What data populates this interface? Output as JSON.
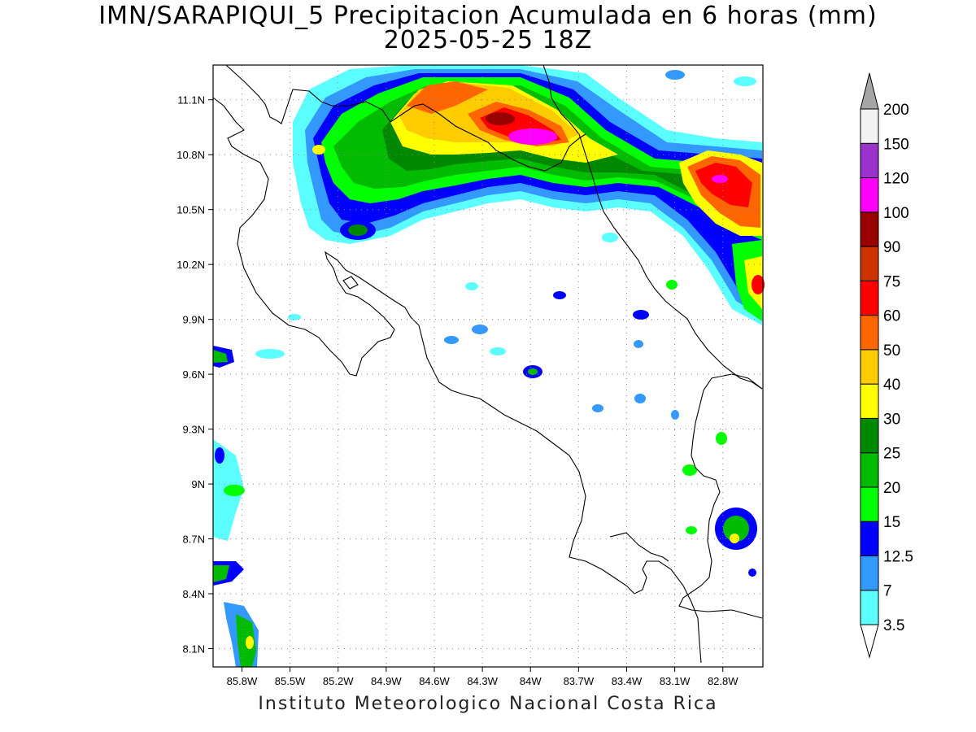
{
  "title": {
    "line1": "IMN/SARAPIQUI_5 Precipitacion Acumulada en 6 horas (mm)",
    "line2": "2025-05-25 18Z"
  },
  "footer": "Instituto Meteorologico Nacional Costa Rica",
  "map": {
    "lon_range": [
      -85.98,
      -82.55
    ],
    "lat_range": [
      8.0,
      11.29
    ],
    "lon_ticks": [
      {
        "value": -85.8,
        "label": "85.8W"
      },
      {
        "value": -85.5,
        "label": "85.5W"
      },
      {
        "value": -85.2,
        "label": "85.2W"
      },
      {
        "value": -84.9,
        "label": "84.9W"
      },
      {
        "value": -84.6,
        "label": "84.6W"
      },
      {
        "value": -84.3,
        "label": "84.3W"
      },
      {
        "value": -84.0,
        "label": "84W"
      },
      {
        "value": -83.7,
        "label": "83.7W"
      },
      {
        "value": -83.4,
        "label": "83.4W"
      },
      {
        "value": -83.1,
        "label": "83.1W"
      },
      {
        "value": -82.8,
        "label": "82.8W"
      }
    ],
    "lat_ticks": [
      {
        "value": 8.1,
        "label": "8.1N"
      },
      {
        "value": 8.4,
        "label": "8.4N"
      },
      {
        "value": 8.7,
        "label": "8.7N"
      },
      {
        "value": 9.0,
        "label": "9N"
      },
      {
        "value": 9.3,
        "label": "9.3N"
      },
      {
        "value": 9.6,
        "label": "9.6N"
      },
      {
        "value": 9.9,
        "label": "9.9N"
      },
      {
        "value": 10.2,
        "label": "10.2N"
      },
      {
        "value": 10.5,
        "label": "10.5N"
      },
      {
        "value": 10.8,
        "label": "10.8N"
      },
      {
        "value": 11.1,
        "label": "11.1N"
      }
    ],
    "grid": "dotted"
  },
  "colorbar": {
    "levels": [
      {
        "label": "3.5",
        "color": "#5cffff"
      },
      {
        "label": "7",
        "color": "#3399ff"
      },
      {
        "label": "12.5",
        "color": "#0000ff"
      },
      {
        "label": "15",
        "color": "#00ff00"
      },
      {
        "label": "20",
        "color": "#00bb00"
      },
      {
        "label": "25",
        "color": "#008800"
      },
      {
        "label": "30",
        "color": "#ffff00"
      },
      {
        "label": "40",
        "color": "#ffcc00"
      },
      {
        "label": "50",
        "color": "#ff6600"
      },
      {
        "label": "60",
        "color": "#ff0000"
      },
      {
        "label": "75",
        "color": "#cc3300"
      },
      {
        "label": "90",
        "color": "#990000"
      },
      {
        "label": "100",
        "color": "#ff00ff"
      },
      {
        "label": "120",
        "color": "#9933cc"
      },
      {
        "label": "150",
        "color": "#f2f2f2"
      },
      {
        "label": "200",
        "color": "#a6a6a6"
      }
    ]
  }
}
